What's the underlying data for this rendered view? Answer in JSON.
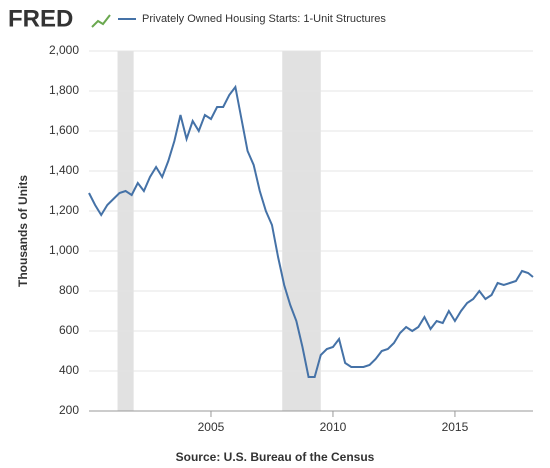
{
  "logo": "FRED",
  "chart_data": {
    "type": "line",
    "y_label": "Thousands of Units",
    "source": "Source: U.S. Bureau of the Census",
    "x": [
      2000.0,
      2000.25,
      2000.5,
      2000.75,
      2001.0,
      2001.25,
      2001.5,
      2001.75,
      2002.0,
      2002.25,
      2002.5,
      2002.75,
      2003.0,
      2003.25,
      2003.5,
      2003.75,
      2004.0,
      2004.25,
      2004.5,
      2004.75,
      2005.0,
      2005.25,
      2005.5,
      2005.75,
      2006.0,
      2006.25,
      2006.5,
      2006.75,
      2007.0,
      2007.25,
      2007.5,
      2007.75,
      2008.0,
      2008.25,
      2008.5,
      2008.75,
      2009.0,
      2009.25,
      2009.5,
      2009.75,
      2010.0,
      2010.25,
      2010.5,
      2010.75,
      2011.0,
      2011.25,
      2011.5,
      2011.75,
      2012.0,
      2012.25,
      2012.5,
      2012.75,
      2013.0,
      2013.25,
      2013.5,
      2013.75,
      2014.0,
      2014.25,
      2014.5,
      2014.75,
      2015.0,
      2015.25,
      2015.5,
      2015.75,
      2016.0,
      2016.25,
      2016.5,
      2016.75,
      2017.0,
      2017.25,
      2017.5,
      2017.75,
      2018.0,
      2018.2
    ],
    "series": [
      {
        "name": "Privately Owned Housing Starts: 1-Unit Structures",
        "color": "#4572a7",
        "values": [
          1290,
          1230,
          1180,
          1230,
          1260,
          1290,
          1300,
          1280,
          1340,
          1300,
          1370,
          1420,
          1370,
          1450,
          1550,
          1680,
          1560,
          1650,
          1600,
          1680,
          1660,
          1720,
          1720,
          1780,
          1820,
          1660,
          1500,
          1430,
          1300,
          1200,
          1130,
          970,
          830,
          730,
          650,
          520,
          370,
          370,
          480,
          510,
          520,
          560,
          440,
          420,
          420,
          420,
          430,
          460,
          500,
          510,
          540,
          590,
          620,
          600,
          620,
          670,
          610,
          650,
          640,
          700,
          650,
          700,
          740,
          760,
          800,
          760,
          780,
          840,
          830,
          840,
          850,
          900,
          890,
          870
        ]
      }
    ],
    "recessions": [
      [
        2001.17,
        2001.83
      ],
      [
        2007.92,
        2009.5
      ]
    ],
    "xlim": [
      2000,
      2018.2
    ],
    "xticks": [
      2005,
      2010,
      2015
    ],
    "ylim": [
      200,
      2000
    ],
    "yticks": [
      200,
      400,
      600,
      800,
      {
        "value": 1000,
        "label": "1,000"
      },
      {
        "value": 1200,
        "label": "1,200"
      },
      {
        "value": 1400,
        "label": "1,400"
      },
      {
        "value": 1600,
        "label": "1,600"
      },
      {
        "value": 1800,
        "label": "1,800"
      },
      {
        "value": 2000,
        "label": "2,000"
      }
    ],
    "grid": true
  }
}
